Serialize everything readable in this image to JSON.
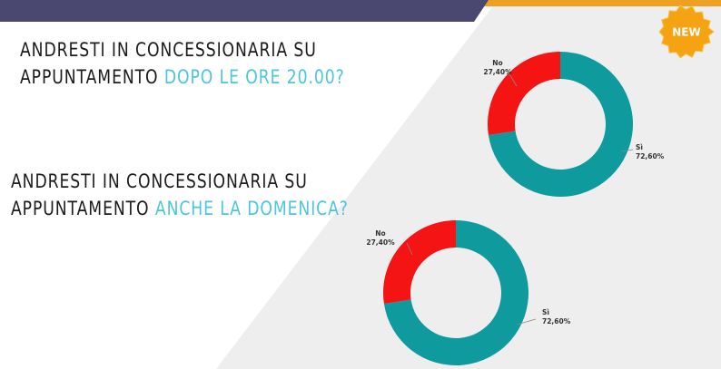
{
  "badge": {
    "label": "NEW"
  },
  "question_1": {
    "part_1": "ANDRESTI IN CONCESSIONARIA SU",
    "part_2": "APPUNTAMENTO",
    "highlight": "DOPO LE ORE 20.00?"
  },
  "question_2": {
    "part_1": "ANDRESTI IN CONCESSIONARIA SU",
    "part_2": "APPUNTAMENTO",
    "highlight": "ANCHE LA DOMENICA?"
  },
  "colors": {
    "banner": "#4a4870",
    "accent_bar": "#f0a020",
    "highlight_text": "#4cc6da",
    "panel": "#eeeeee",
    "si": "#0f9a9e",
    "no": "#f51414"
  },
  "chart_data": [
    {
      "type": "pie",
      "variant": "donut",
      "slices": [
        {
          "label": "Sì",
          "percent_label": "72,60%",
          "value": 72.6,
          "color": "#0f9a9e"
        },
        {
          "label": "No",
          "percent_label": "27,40%",
          "value": 27.4,
          "color": "#f51414"
        }
      ]
    },
    {
      "type": "pie",
      "variant": "donut",
      "slices": [
        {
          "label": "Sì",
          "percent_label": "72,60%",
          "value": 72.6,
          "color": "#0f9a9e"
        },
        {
          "label": "No",
          "percent_label": "27,40%",
          "value": 27.4,
          "color": "#f51414"
        }
      ]
    }
  ]
}
